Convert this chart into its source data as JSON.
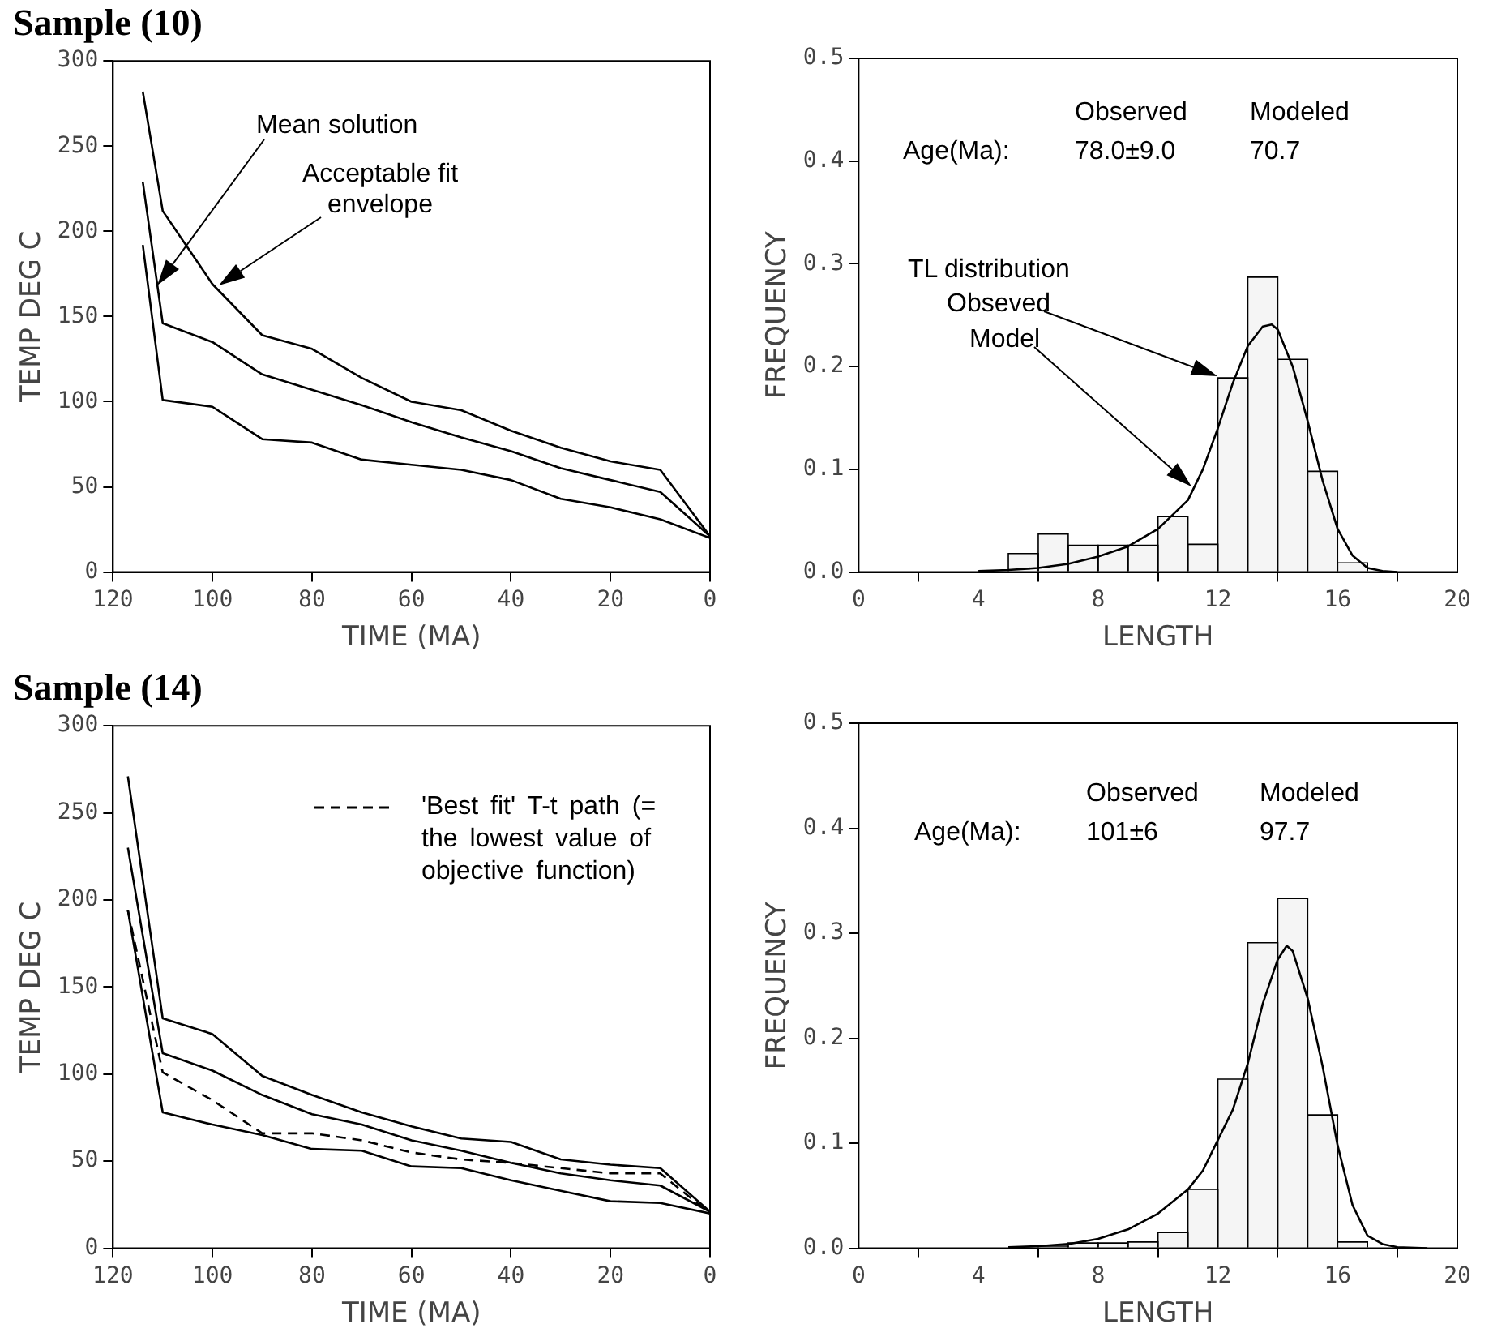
{
  "chart_data": [
    {
      "type": "line",
      "title": "Sample (10)",
      "xlabel": "TIME (MA)",
      "ylabel": "TEMP DEG C",
      "xlim": [
        120,
        0
      ],
      "xticks": [
        120,
        100,
        80,
        60,
        40,
        20,
        0
      ],
      "ylim": [
        0,
        300
      ],
      "yticks": [
        0,
        50,
        100,
        150,
        200,
        250,
        300
      ],
      "grid": false,
      "annotations": [
        "Mean solution",
        "Acceptable fit envelope"
      ],
      "series": [
        {
          "color": "#000000",
          "x": [
            114,
            110,
            100,
            90,
            80,
            70,
            60,
            50,
            40,
            30,
            20,
            10,
            0
          ],
          "values": [
            282,
            212,
            169,
            139,
            131,
            114,
            100,
            95,
            83,
            73,
            65,
            60,
            21
          ]
        },
        {
          "color": "#000000",
          "x": [
            114,
            110,
            100,
            90,
            80,
            70,
            60,
            50,
            40,
            30,
            20,
            10,
            0
          ],
          "values": [
            229,
            146,
            135,
            116,
            107,
            98,
            88,
            79,
            71,
            61,
            54,
            47,
            21
          ]
        },
        {
          "color": "#000000",
          "x": [
            114,
            110,
            100,
            90,
            80,
            70,
            60,
            50,
            40,
            30,
            20,
            10,
            0
          ],
          "values": [
            192,
            101,
            97,
            78,
            76,
            66,
            63,
            60,
            54,
            43,
            38,
            31,
            20
          ]
        }
      ]
    },
    {
      "type": "histogram",
      "xlabel": "LENGTH",
      "ylabel": "FREQUENCY",
      "xlim": [
        0,
        20
      ],
      "xticks": [
        0,
        4,
        8,
        12,
        16,
        20
      ],
      "ylim": [
        0,
        0.5
      ],
      "yticks": [
        {
          "value": 0,
          "label": "0.0"
        },
        {
          "value": 0.1,
          "label": "0.1"
        },
        {
          "value": 0.2,
          "label": "0.2"
        },
        {
          "value": 0.3,
          "label": "0.3"
        },
        {
          "value": 0.4,
          "label": "0.4"
        },
        {
          "value": 0.5,
          "label": "0.5"
        }
      ],
      "grid": false,
      "annotations": [
        "Observed",
        "Modeled",
        "Age(Ma):",
        "78.0±9.0",
        "70.7",
        "TL distribution",
        "Obseved",
        "Model"
      ],
      "series": [
        {
          "type": "histogram",
          "color": "#f5f5f5",
          "bins": [
            5,
            6,
            7,
            8,
            9,
            10,
            11,
            12,
            13,
            14,
            15,
            16,
            17
          ],
          "values": [
            0.018,
            0.037,
            0.026,
            0.026,
            0.026,
            0.054,
            0.027,
            0.189,
            0.287,
            0.207,
            0.098,
            0.009
          ]
        },
        {
          "type": "line",
          "color": "#000000",
          "x": [
            4,
            5,
            6,
            7,
            8,
            9,
            10,
            11,
            11.5,
            12,
            12.5,
            13,
            13.5,
            13.8,
            14,
            14.5,
            15,
            15.5,
            16,
            16.5,
            17,
            17.5,
            18
          ],
          "values": [
            0.001,
            0.002,
            0.004,
            0.008,
            0.015,
            0.025,
            0.042,
            0.07,
            0.1,
            0.14,
            0.184,
            0.22,
            0.239,
            0.241,
            0.236,
            0.2,
            0.147,
            0.089,
            0.042,
            0.016,
            0.004,
            0.001,
            0
          ]
        }
      ]
    },
    {
      "type": "line",
      "title": "Sample (14)",
      "xlabel": "TIME (MA)",
      "ylabel": "TEMP DEG C",
      "xlim": [
        120,
        0
      ],
      "xticks": [
        120,
        100,
        80,
        60,
        40,
        20,
        0
      ],
      "ylim": [
        0,
        300
      ],
      "yticks": [
        0,
        50,
        100,
        150,
        200,
        250,
        300
      ],
      "grid": false,
      "legend": "top right",
      "series": [
        {
          "color": "#000000",
          "x": [
            117,
            110,
            100,
            90,
            80,
            70,
            60,
            50,
            40,
            30,
            20,
            10,
            0
          ],
          "values": [
            271,
            132,
            123,
            99,
            88,
            78,
            70,
            63,
            61,
            51,
            48,
            46,
            21
          ]
        },
        {
          "color": "#000000",
          "x": [
            117,
            110,
            100,
            90,
            80,
            70,
            60,
            50,
            40,
            30,
            20,
            10,
            0
          ],
          "values": [
            230,
            112,
            102,
            88,
            77,
            71,
            62,
            56,
            49,
            43,
            39,
            36,
            21
          ]
        },
        {
          "color": "#000000",
          "x": [
            117,
            110,
            100,
            90,
            80,
            70,
            60,
            50,
            40,
            30,
            20,
            10,
            0
          ],
          "values": [
            194,
            78,
            71,
            65,
            57,
            56,
            47,
            46,
            39,
            33,
            27,
            26,
            20
          ]
        },
        {
          "name": "'Best fit' T-t path (= the lowest value of objective function)",
          "color": "#000000",
          "line_style": "dashed",
          "x": [
            117,
            110,
            100,
            90,
            80,
            70,
            60,
            50,
            40,
            30,
            20,
            10,
            0
          ],
          "values": [
            194,
            101,
            85,
            66,
            66,
            62,
            55,
            51,
            49,
            46,
            43,
            43,
            20
          ]
        }
      ]
    },
    {
      "type": "histogram",
      "xlabel": "LENGTH",
      "ylabel": "FREQUENCY",
      "xlim": [
        0,
        20
      ],
      "xticks": [
        0,
        4,
        8,
        12,
        16,
        20
      ],
      "ylim": [
        0,
        0.5
      ],
      "yticks": [
        {
          "value": 0,
          "label": "0.0"
        },
        {
          "value": 0.1,
          "label": "0.1"
        },
        {
          "value": 0.2,
          "label": "0.2"
        },
        {
          "value": 0.3,
          "label": "0.3"
        },
        {
          "value": 0.4,
          "label": "0.4"
        },
        {
          "value": 0.5,
          "label": "0.5"
        }
      ],
      "grid": false,
      "annotations": [
        "Observed",
        "Modeled",
        "Age(Ma):",
        "101±6",
        "97.7"
      ],
      "series": [
        {
          "type": "histogram",
          "color": "#f5f5f5",
          "bins": [
            6,
            7,
            8,
            9,
            10,
            11,
            12,
            13,
            14,
            15,
            16,
            17
          ],
          "values": [
            0.002,
            0.005,
            0.005,
            0.006,
            0.015,
            0.056,
            0.161,
            0.291,
            0.333,
            0.127,
            0.006
          ]
        },
        {
          "type": "line",
          "color": "#000000",
          "x": [
            5,
            6,
            7,
            8,
            9,
            10,
            11,
            11.5,
            12,
            12.5,
            13,
            13.5,
            14,
            14.3,
            14.5,
            15,
            15.5,
            16,
            16.5,
            17,
            17.5,
            18,
            19
          ],
          "values": [
            0.001,
            0.002,
            0.004,
            0.009,
            0.018,
            0.033,
            0.056,
            0.074,
            0.103,
            0.132,
            0.176,
            0.233,
            0.275,
            0.288,
            0.283,
            0.238,
            0.173,
            0.098,
            0.041,
            0.012,
            0.004,
            0.001,
            0
          ]
        }
      ]
    }
  ]
}
